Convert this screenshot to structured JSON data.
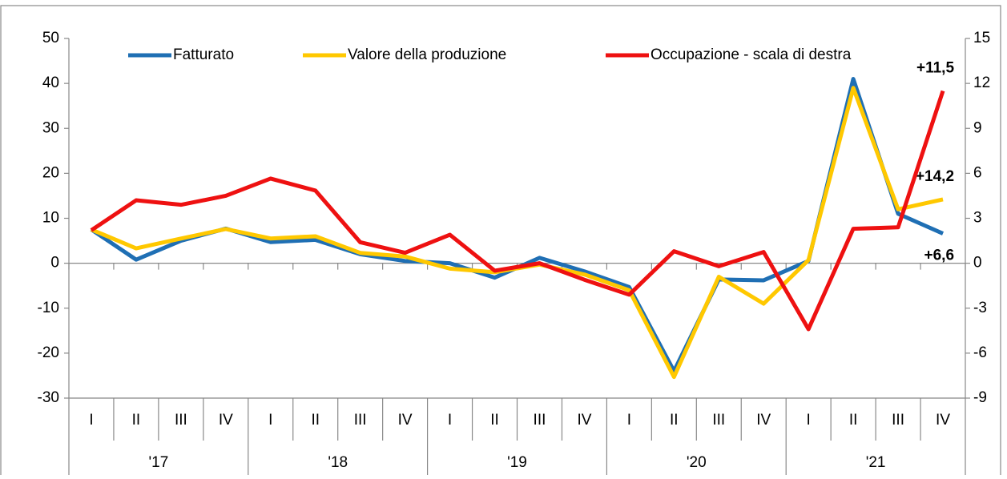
{
  "chart_data": {
    "type": "line",
    "categories": [
      "I",
      "II",
      "III",
      "IV",
      "I",
      "II",
      "III",
      "IV",
      "I",
      "II",
      "III",
      "IV",
      "I",
      "II",
      "III",
      "IV",
      "I",
      "II",
      "III",
      "IV"
    ],
    "years": [
      "'17",
      "'18",
      "'19",
      "'20",
      "'21"
    ],
    "series": [
      {
        "name": "Fatturato",
        "color": "#1f6fb4",
        "values": [
          7.5,
          0.8,
          5,
          7.7,
          4.7,
          5.2,
          2,
          0.5,
          0,
          -3.2,
          1.2,
          -1.8,
          -5.3,
          -24,
          -3.6,
          -3.8,
          0.5,
          41,
          11,
          6.6
        ],
        "value_labels": [
          null,
          null,
          null,
          null,
          null,
          null,
          null,
          null,
          null,
          null,
          null,
          null,
          null,
          null,
          null,
          null,
          null,
          null,
          null,
          "+6,6"
        ]
      },
      {
        "name": "Valore della produzione",
        "color": "#ffc800",
        "values": [
          7.5,
          3.3,
          5.5,
          7.6,
          5.5,
          6,
          2.3,
          1.5,
          -1.2,
          -2,
          -0.3,
          -2.5,
          -6,
          -25.3,
          -3,
          -9,
          0.7,
          39,
          12,
          14.2
        ],
        "value_labels": [
          null,
          null,
          null,
          null,
          null,
          null,
          null,
          null,
          null,
          null,
          null,
          null,
          null,
          null,
          null,
          null,
          null,
          null,
          null,
          "+14,2"
        ]
      },
      {
        "name": "Occupazione - scala di destra",
        "color": "#ee1111",
        "axis": "y2",
        "values": [
          2.2,
          4.2,
          3.9,
          4.5,
          5.65,
          4.85,
          1.4,
          0.7,
          1.9,
          -0.5,
          0,
          -1.1,
          -2.1,
          0.8,
          -0.2,
          0.75,
          -4.4,
          2.3,
          2.4,
          11.5
        ],
        "value_labels": [
          null,
          null,
          null,
          null,
          null,
          null,
          null,
          null,
          null,
          null,
          null,
          null,
          null,
          null,
          null,
          null,
          null,
          null,
          null,
          "+11,5"
        ]
      }
    ],
    "ylim": [
      -30,
      50
    ],
    "yticks": [
      -30,
      -20,
      -10,
      0,
      10,
      20,
      30,
      40,
      50
    ],
    "y2lim": [
      -9,
      15
    ],
    "y2ticks": [
      -9,
      -6,
      -3,
      0,
      3,
      6,
      9,
      12,
      15
    ]
  }
}
